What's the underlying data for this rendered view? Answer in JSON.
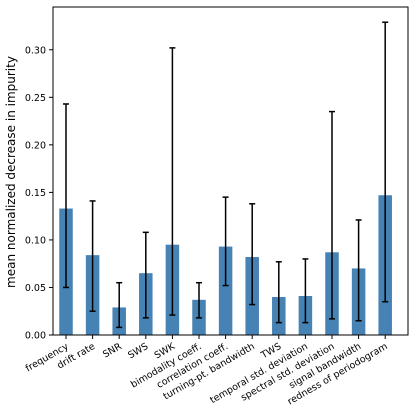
{
  "chart_data": {
    "type": "bar",
    "title": "",
    "xlabel": "",
    "ylabel": "mean normalized decrease in impurity",
    "ylim": [
      0,
      0.345
    ],
    "yticks": [
      0.0,
      0.05,
      0.1,
      0.15,
      0.2,
      0.25,
      0.3
    ],
    "ytick_labels": [
      "0.00",
      "0.05",
      "0.10",
      "0.15",
      "0.20",
      "0.25",
      "0.30"
    ],
    "grid": false,
    "bar_color": "#4682b4",
    "errorbar_color": "#000000",
    "categories": [
      "frequency",
      "drift rate",
      "SNR",
      "SWS",
      "SWK",
      "bimodality coeff.",
      "correlation coeff.",
      "turning-pt. bandwidth",
      "TWS",
      "temporal std. deviation",
      "spectral std. deviation",
      "signal bandwidth",
      "redness of periodogram"
    ],
    "values": [
      0.133,
      0.084,
      0.029,
      0.065,
      0.095,
      0.037,
      0.093,
      0.082,
      0.04,
      0.041,
      0.087,
      0.07,
      0.147
    ],
    "error_low": [
      0.05,
      0.025,
      0.008,
      0.018,
      0.021,
      0.018,
      0.052,
      0.032,
      0.013,
      0.013,
      0.017,
      0.015,
      0.035
    ],
    "error_high": [
      0.243,
      0.141,
      0.055,
      0.108,
      0.302,
      0.055,
      0.145,
      0.138,
      0.077,
      0.08,
      0.235,
      0.121,
      0.329
    ]
  }
}
